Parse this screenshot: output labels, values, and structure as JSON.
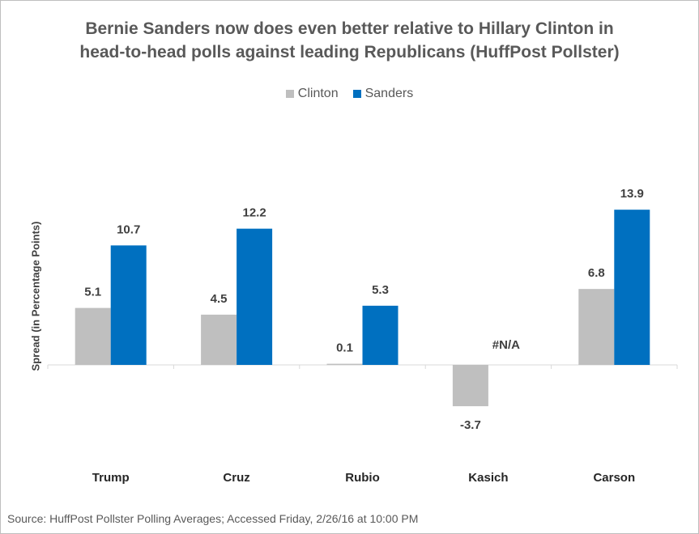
{
  "chart_data": {
    "type": "bar",
    "title": "Bernie Sanders now does even better relative to Hillary Clinton in head-to-head polls against leading Republicans (HuffPost Pollster)",
    "title_lines": [
      "Bernie Sanders now does even better relative to Hillary Clinton in",
      "head-to-head polls against leading Republicans (HuffPost Pollster)"
    ],
    "ylabel": "Spread (in Percentage Points)",
    "xlabel": "",
    "categories": [
      "Trump",
      "Cruz",
      "Rubio",
      "Kasich",
      "Carson"
    ],
    "series": [
      {
        "name": "Clinton",
        "color": "#bfbfbf",
        "values": [
          5.1,
          4.5,
          0.1,
          -3.7,
          6.8
        ],
        "labels": [
          "5.1",
          "4.5",
          "0.1",
          "-3.7",
          "6.8"
        ]
      },
      {
        "name": "Sanders",
        "color": "#0070c0",
        "values": [
          10.7,
          12.2,
          5.3,
          null,
          13.9
        ],
        "labels": [
          "10.7",
          "12.2",
          "5.3",
          "#N/A",
          "13.9"
        ]
      }
    ],
    "ylim": [
      -6,
      16
    ],
    "legend_position": "top",
    "grid": false
  },
  "source": "Source: HuffPost Pollster Polling Averages; Accessed Friday, 2/26/16 at 10:00 PM"
}
